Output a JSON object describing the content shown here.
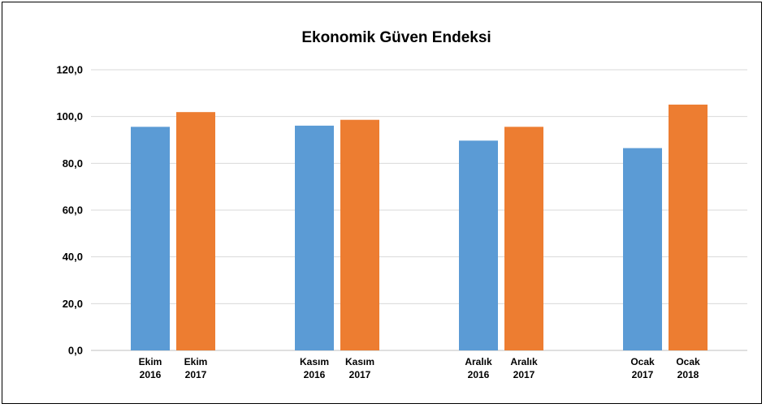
{
  "chart_data": {
    "type": "bar",
    "title": "Ekonomik Güven Endeksi",
    "xlabel": "",
    "ylabel": "",
    "ylim": [
      0,
      120
    ],
    "yticks": [
      0,
      20,
      40,
      60,
      80,
      100,
      120
    ],
    "ytick_labels": [
      "0,0",
      "20,0",
      "40,0",
      "60,0",
      "80,0",
      "100,0",
      "120,0"
    ],
    "grid": true,
    "legend": "none",
    "groups": [
      {
        "bars": [
          {
            "label_line1": "Ekim",
            "label_line2": "2016",
            "value": 95.6,
            "color": "#5b9bd5"
          },
          {
            "label_line1": "Ekim",
            "label_line2": "2017",
            "value": 101.9,
            "color": "#ed7d31"
          }
        ]
      },
      {
        "bars": [
          {
            "label_line1": "Kasım",
            "label_line2": "2016",
            "value": 96.1,
            "color": "#5b9bd5"
          },
          {
            "label_line1": "Kasım",
            "label_line2": "2017",
            "value": 98.6,
            "color": "#ed7d31"
          }
        ]
      },
      {
        "bars": [
          {
            "label_line1": "Aralık",
            "label_line2": "2016",
            "value": 89.7,
            "color": "#5b9bd5"
          },
          {
            "label_line1": "Aralık",
            "label_line2": "2017",
            "value": 95.6,
            "color": "#ed7d31"
          }
        ]
      },
      {
        "bars": [
          {
            "label_line1": "Ocak",
            "label_line2": "2017",
            "value": 86.5,
            "color": "#5b9bd5"
          },
          {
            "label_line1": "Ocak",
            "label_line2": "2018",
            "value": 105.1,
            "color": "#ed7d31"
          }
        ]
      }
    ]
  }
}
